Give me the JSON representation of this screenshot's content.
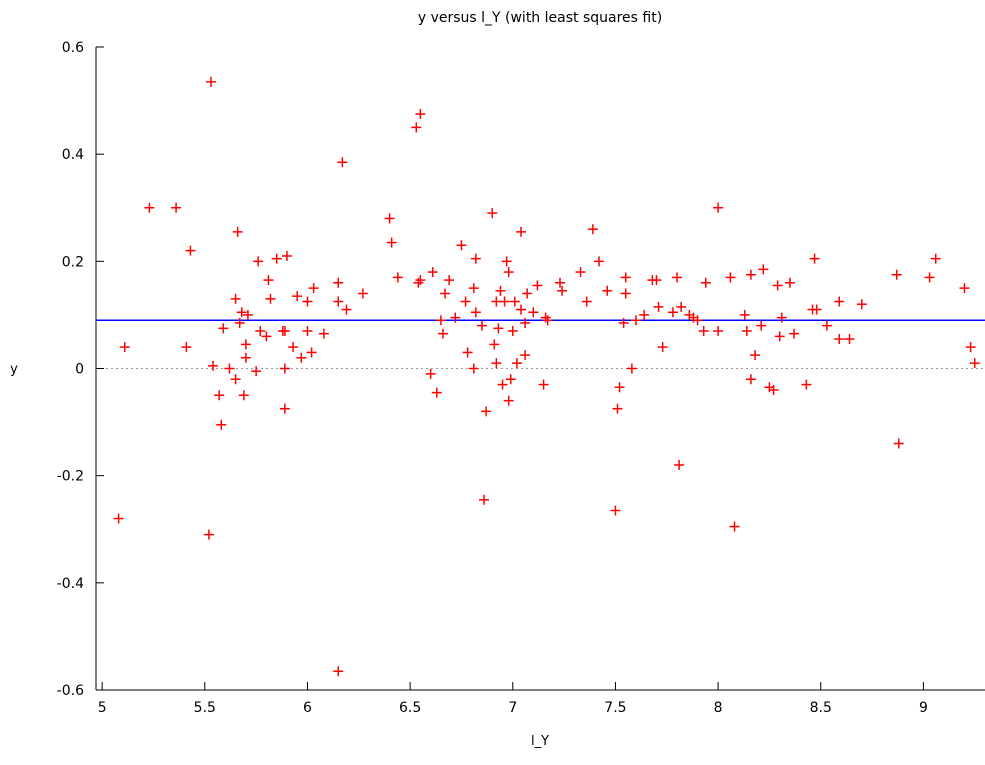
{
  "chart_data": {
    "type": "scatter",
    "title": "y versus l_Y (with least squares fit)",
    "xlabel": "l_Y",
    "ylabel": "y",
    "xlim": [
      4.97,
      9.3
    ],
    "ylim": [
      -0.6,
      0.6
    ],
    "xticks": [
      5,
      5.5,
      6,
      6.5,
      7,
      7.5,
      8,
      8.5,
      9
    ],
    "xtick_labels": [
      "5",
      "5.5",
      "6",
      "6.5",
      "7",
      "7.5",
      "8",
      "8.5",
      "9"
    ],
    "yticks": [
      -0.6,
      -0.4,
      -0.2,
      0,
      0.2,
      0.4,
      0.6
    ],
    "ytick_labels": [
      "-0.6",
      "-0.4",
      "-0.2",
      "0",
      "0.2",
      "0.4",
      "0.6"
    ],
    "grid": false,
    "zero_line": {
      "y": 0,
      "style": "dotted",
      "color": "#999999"
    },
    "fit_line": {
      "slope": 0,
      "intercept": 0.09,
      "color": "#0000ff"
    },
    "marker": {
      "shape": "plus",
      "color": "#ff0000"
    },
    "series": [
      {
        "points": [
          [
            5.08,
            -0.28
          ],
          [
            5.11,
            0.04
          ],
          [
            5.23,
            0.3
          ],
          [
            5.36,
            0.3
          ],
          [
            5.41,
            0.04
          ],
          [
            5.43,
            0.22
          ],
          [
            5.52,
            -0.31
          ],
          [
            5.53,
            0.535
          ],
          [
            5.54,
            0.005
          ],
          [
            5.57,
            -0.05
          ],
          [
            5.58,
            -0.105
          ],
          [
            5.59,
            0.075
          ],
          [
            5.62,
            0.0
          ],
          [
            5.65,
            0.13
          ],
          [
            5.65,
            -0.02
          ],
          [
            5.66,
            0.255
          ],
          [
            5.67,
            0.085
          ],
          [
            5.68,
            0.105
          ],
          [
            5.69,
            -0.05
          ],
          [
            5.7,
            0.02
          ],
          [
            5.7,
            0.045
          ],
          [
            5.71,
            0.1
          ],
          [
            5.75,
            -0.005
          ],
          [
            5.76,
            0.2
          ],
          [
            5.77,
            0.07
          ],
          [
            5.8,
            0.06
          ],
          [
            5.81,
            0.165
          ],
          [
            5.82,
            0.13
          ],
          [
            5.85,
            0.205
          ],
          [
            5.88,
            0.07
          ],
          [
            5.89,
            0.07
          ],
          [
            5.89,
            -0.075
          ],
          [
            5.89,
            0.0
          ],
          [
            5.9,
            0.21
          ],
          [
            5.93,
            0.04
          ],
          [
            5.95,
            0.135
          ],
          [
            5.97,
            0.02
          ],
          [
            6.0,
            0.07
          ],
          [
            6.0,
            0.125
          ],
          [
            6.02,
            0.03
          ],
          [
            6.03,
            0.15
          ],
          [
            6.08,
            0.065
          ],
          [
            6.15,
            0.125
          ],
          [
            6.15,
            0.16
          ],
          [
            6.15,
            -0.565
          ],
          [
            6.17,
            0.385
          ],
          [
            6.19,
            0.11
          ],
          [
            6.27,
            0.14
          ],
          [
            6.4,
            0.28
          ],
          [
            6.41,
            0.235
          ],
          [
            6.44,
            0.17
          ],
          [
            6.53,
            0.45
          ],
          [
            6.54,
            0.16
          ],
          [
            6.55,
            0.475
          ],
          [
            6.55,
            0.165
          ],
          [
            6.6,
            -0.01
          ],
          [
            6.61,
            0.18
          ],
          [
            6.63,
            -0.045
          ],
          [
            6.65,
            0.09
          ],
          [
            6.66,
            0.065
          ],
          [
            6.67,
            0.14
          ],
          [
            6.69,
            0.165
          ],
          [
            6.72,
            0.095
          ],
          [
            6.75,
            0.23
          ],
          [
            6.77,
            0.125
          ],
          [
            6.78,
            0.03
          ],
          [
            6.81,
            0.0
          ],
          [
            6.81,
            0.15
          ],
          [
            6.82,
            0.205
          ],
          [
            6.82,
            0.105
          ],
          [
            6.85,
            0.08
          ],
          [
            6.86,
            -0.245
          ],
          [
            6.87,
            -0.08
          ],
          [
            6.9,
            0.29
          ],
          [
            6.91,
            0.045
          ],
          [
            6.92,
            0.01
          ],
          [
            6.92,
            0.125
          ],
          [
            6.93,
            0.075
          ],
          [
            6.94,
            0.145
          ],
          [
            6.95,
            -0.03
          ],
          [
            6.96,
            0.125
          ],
          [
            6.97,
            0.2
          ],
          [
            6.98,
            -0.06
          ],
          [
            6.98,
            0.18
          ],
          [
            6.99,
            -0.02
          ],
          [
            7.0,
            0.07
          ],
          [
            7.01,
            0.125
          ],
          [
            7.02,
            0.01
          ],
          [
            7.04,
            0.11
          ],
          [
            7.04,
            0.255
          ],
          [
            7.06,
            0.085
          ],
          [
            7.06,
            0.025
          ],
          [
            7.07,
            0.14
          ],
          [
            7.1,
            0.105
          ],
          [
            7.12,
            0.155
          ],
          [
            7.15,
            -0.03
          ],
          [
            7.16,
            0.095
          ],
          [
            7.17,
            0.09
          ],
          [
            7.23,
            0.16
          ],
          [
            7.24,
            0.145
          ],
          [
            7.33,
            0.18
          ],
          [
            7.36,
            0.125
          ],
          [
            7.39,
            0.26
          ],
          [
            7.42,
            0.2
          ],
          [
            7.46,
            0.145
          ],
          [
            7.5,
            -0.265
          ],
          [
            7.51,
            -0.075
          ],
          [
            7.52,
            -0.035
          ],
          [
            7.54,
            0.085
          ],
          [
            7.55,
            0.17
          ],
          [
            7.55,
            0.14
          ],
          [
            7.58,
            0.0
          ],
          [
            7.6,
            0.09
          ],
          [
            7.64,
            0.1
          ],
          [
            7.68,
            0.165
          ],
          [
            7.7,
            0.165
          ],
          [
            7.71,
            0.115
          ],
          [
            7.73,
            0.04
          ],
          [
            7.78,
            0.105
          ],
          [
            7.8,
            0.17
          ],
          [
            7.81,
            -0.18
          ],
          [
            7.82,
            0.115
          ],
          [
            7.86,
            0.1
          ],
          [
            7.88,
            0.095
          ],
          [
            7.9,
            0.09
          ],
          [
            7.93,
            0.07
          ],
          [
            7.94,
            0.16
          ],
          [
            8.0,
            0.3
          ],
          [
            8.0,
            0.07
          ],
          [
            8.06,
            0.17
          ],
          [
            8.08,
            -0.295
          ],
          [
            8.13,
            0.1
          ],
          [
            8.14,
            0.07
          ],
          [
            8.16,
            0.175
          ],
          [
            8.16,
            -0.02
          ],
          [
            8.18,
            0.025
          ],
          [
            8.21,
            0.08
          ],
          [
            8.22,
            0.185
          ],
          [
            8.25,
            -0.035
          ],
          [
            8.27,
            -0.04
          ],
          [
            8.29,
            0.155
          ],
          [
            8.3,
            0.06
          ],
          [
            8.31,
            0.095
          ],
          [
            8.35,
            0.16
          ],
          [
            8.37,
            0.065
          ],
          [
            8.43,
            -0.03
          ],
          [
            8.46,
            0.11
          ],
          [
            8.47,
            0.205
          ],
          [
            8.48,
            0.11
          ],
          [
            8.53,
            0.08
          ],
          [
            8.59,
            0.125
          ],
          [
            8.59,
            0.055
          ],
          [
            8.64,
            0.055
          ],
          [
            8.7,
            0.12
          ],
          [
            8.87,
            0.175
          ],
          [
            8.88,
            -0.14
          ],
          [
            9.03,
            0.17
          ],
          [
            9.06,
            0.205
          ],
          [
            9.2,
            0.15
          ],
          [
            9.23,
            0.04
          ],
          [
            9.25,
            0.01
          ]
        ]
      }
    ]
  }
}
